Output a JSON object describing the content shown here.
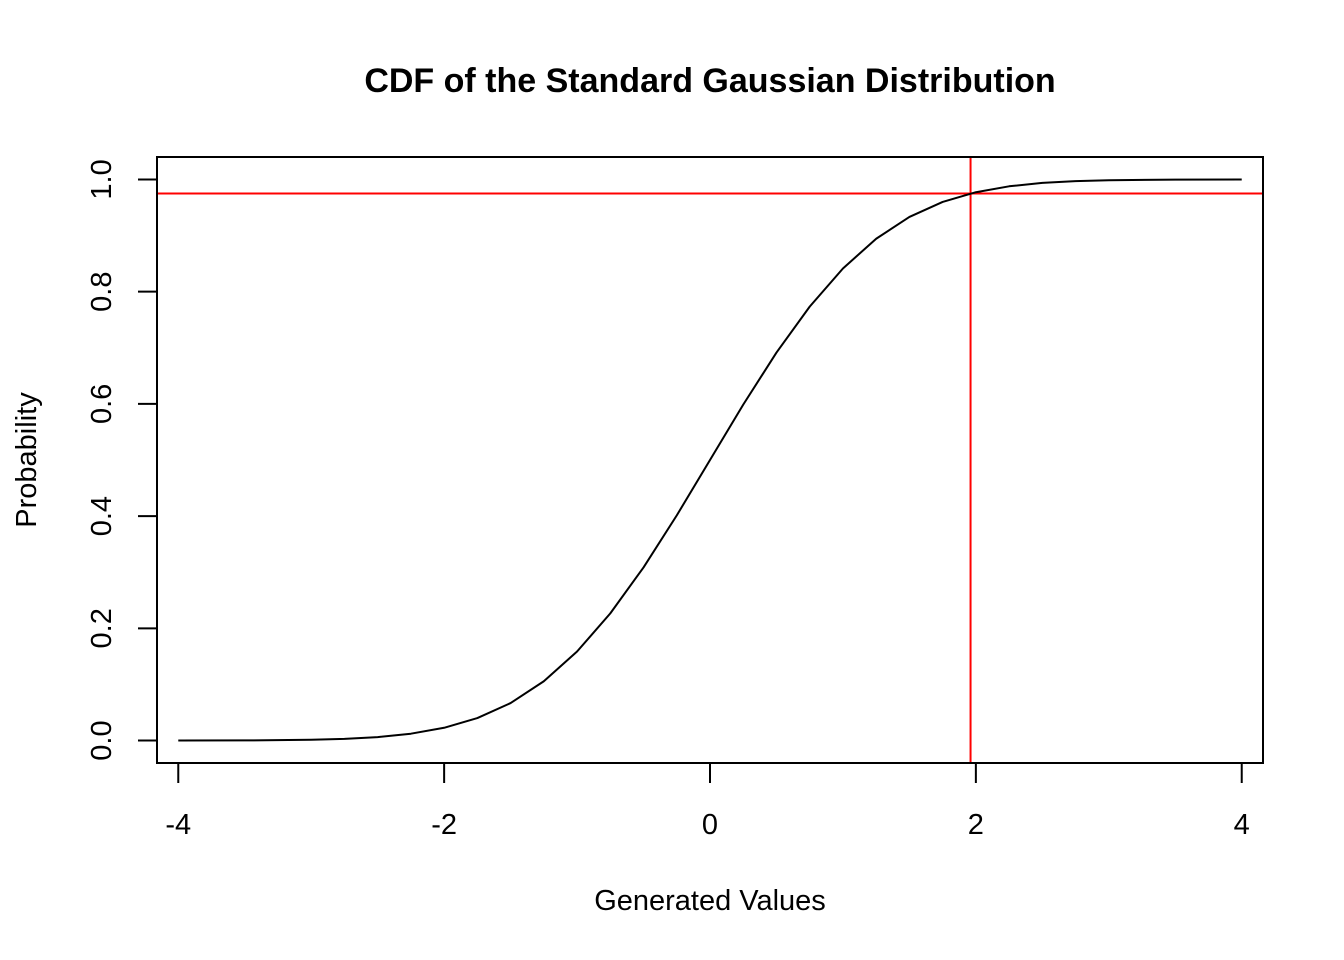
{
  "chart_data": {
    "type": "line",
    "title": "CDF of the Standard Gaussian Distribution",
    "xlabel": "Generated Values",
    "ylabel": "Probability",
    "xlim": [
      -4.16,
      4.16
    ],
    "ylim": [
      -0.04,
      1.04
    ],
    "x_ticks": [
      {
        "value": -4,
        "label": "-4"
      },
      {
        "value": -2,
        "label": "-2"
      },
      {
        "value": 0,
        "label": "0"
      },
      {
        "value": 2,
        "label": "2"
      },
      {
        "value": 4,
        "label": "4"
      }
    ],
    "y_ticks": [
      {
        "value": 0.0,
        "label": "0.0"
      },
      {
        "value": 0.2,
        "label": "0.2"
      },
      {
        "value": 0.4,
        "label": "0.4"
      },
      {
        "value": 0.6,
        "label": "0.6"
      },
      {
        "value": 0.8,
        "label": "0.8"
      },
      {
        "value": 1.0,
        "label": "1.0"
      }
    ],
    "series": [
      {
        "color": "#000000",
        "x": [
          -4.0,
          -3.5,
          -3.0,
          -2.75,
          -2.5,
          -2.25,
          -2.0,
          -1.75,
          -1.5,
          -1.25,
          -1.0,
          -0.75,
          -0.5,
          -0.25,
          0.0,
          0.25,
          0.5,
          0.75,
          1.0,
          1.25,
          1.5,
          1.75,
          2.0,
          2.25,
          2.5,
          2.75,
          3.0,
          3.5,
          4.0
        ],
        "y": [
          3e-05,
          0.00023,
          0.00135,
          0.00298,
          0.00621,
          0.01222,
          0.02275,
          0.04006,
          0.06681,
          0.10565,
          0.15866,
          0.22663,
          0.30854,
          0.40129,
          0.5,
          0.59871,
          0.69146,
          0.77337,
          0.84134,
          0.89435,
          0.93319,
          0.95994,
          0.97725,
          0.98778,
          0.99379,
          0.99702,
          0.99865,
          0.99977,
          0.99997
        ]
      }
    ],
    "reference_lines": [
      {
        "orientation": "vertical",
        "value": 1.96,
        "color": "#ff0000"
      },
      {
        "orientation": "horizontal",
        "value": 0.975,
        "color": "#ff0000"
      }
    ],
    "grid": false,
    "legend": "none"
  }
}
